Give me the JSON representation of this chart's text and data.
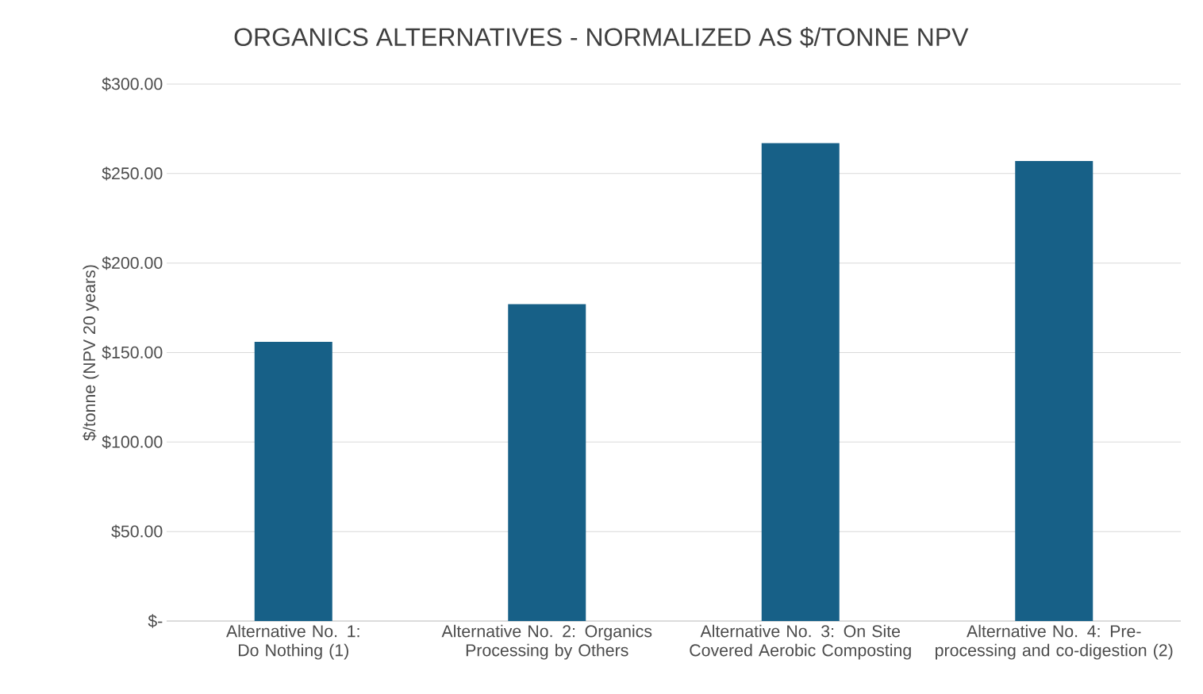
{
  "chart_data": {
    "type": "bar",
    "title": "ORGANICS ALTERNATIVES - NORMALIZED AS $/TONNE NPV",
    "ylabel": "$/tonne (NPV 20 years)",
    "categories": [
      "Alternative No. 1: Do Nothing (1)",
      "Alternative No. 2: Organics Processing by Others",
      "Alternative No. 3: On Site Covered Aerobic Composting",
      "Alternative No. 4: Pre-processing and co-digestion (2)"
    ],
    "values": [
      156,
      177,
      267,
      257
    ],
    "color": "#176087",
    "ylim": [
      0,
      300
    ],
    "yticks": [
      {
        "value": 0,
        "label": "$-"
      },
      {
        "value": 50,
        "label": "$50.00"
      },
      {
        "value": 100,
        "label": "$100.00"
      },
      {
        "value": 150,
        "label": "$150.00"
      },
      {
        "value": 200,
        "label": "$200.00"
      },
      {
        "value": 250,
        "label": "$250.00"
      },
      {
        "value": 300,
        "label": "$300.00"
      }
    ],
    "grid": "y"
  }
}
